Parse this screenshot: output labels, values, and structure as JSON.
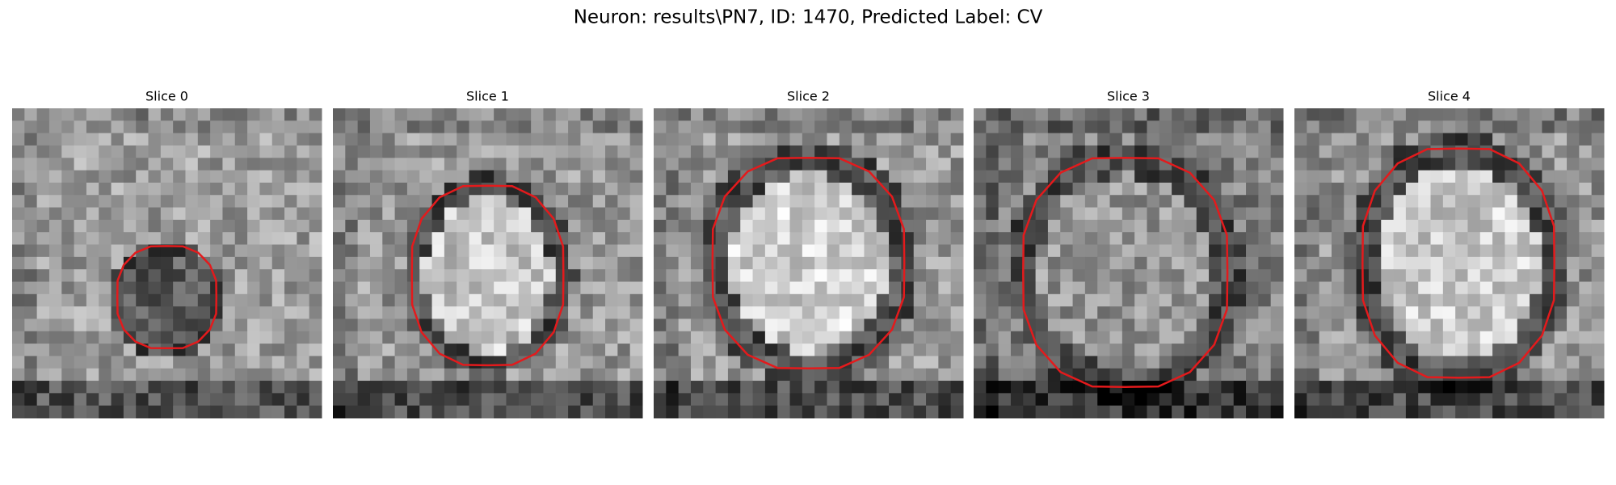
{
  "title": "Neuron: results\\PN7, ID: 1470, Predicted Label: CV",
  "panels": [
    {
      "title": "Slice 0"
    },
    {
      "title": "Slice 1"
    },
    {
      "title": "Slice 2"
    },
    {
      "title": "Slice 3"
    },
    {
      "title": "Slice 4"
    }
  ]
}
